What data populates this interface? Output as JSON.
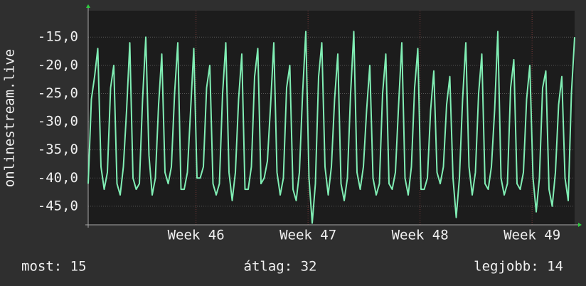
{
  "chart_data": {
    "type": "line",
    "y_label": "onlinestream.live",
    "ylim": [
      -48.3,
      -10.3
    ],
    "yticks": [
      {
        "value": -15,
        "label": "-15,0"
      },
      {
        "value": -20,
        "label": "-20,0"
      },
      {
        "value": -25,
        "label": "-25,0"
      },
      {
        "value": -30,
        "label": "-30,0"
      },
      {
        "value": -35,
        "label": "-35,0"
      },
      {
        "value": -40,
        "label": "-40,0"
      },
      {
        "value": -45,
        "label": "-45,0"
      }
    ],
    "xlim": [
      0,
      152
    ],
    "xticks": [
      {
        "value": 33.7,
        "label": "Week 46"
      },
      {
        "value": 68.7,
        "label": "Week 47"
      },
      {
        "value": 103.7,
        "label": "Week 48"
      },
      {
        "value": 138.7,
        "label": "Week 49"
      }
    ],
    "grid": true,
    "color": "#80eeb4",
    "values": [
      -41,
      -26,
      -22,
      -17,
      -38,
      -42,
      -39,
      -24,
      -20,
      -41,
      -43,
      -38,
      -28,
      -16,
      -40,
      -42,
      -41,
      -26,
      -15,
      -36,
      -43,
      -40,
      -27,
      -18,
      -39,
      -41,
      -38,
      -25,
      -16,
      -42,
      -42,
      -39,
      -28,
      -17,
      -40,
      -40,
      -38,
      -24,
      -20,
      -41,
      -43,
      -41,
      -25,
      -16,
      -39,
      -44,
      -39,
      -26,
      -18,
      -42,
      -42,
      -38,
      -22,
      -17,
      -41,
      -40,
      -37,
      -27,
      -16,
      -39,
      -43,
      -40,
      -24,
      -20,
      -42,
      -44,
      -39,
      -25,
      -14,
      -40,
      -48,
      -41,
      -22,
      -16,
      -38,
      -43,
      -38,
      -26,
      -18,
      -41,
      -44,
      -40,
      -25,
      -14,
      -39,
      -42,
      -38,
      -28,
      -20,
      -40,
      -43,
      -41,
      -25,
      -18,
      -41,
      -42,
      -39,
      -27,
      -16,
      -40,
      -43,
      -38,
      -24,
      -17,
      -42,
      -42,
      -40,
      -28,
      -21,
      -39,
      -41,
      -38,
      -27,
      -22,
      -40,
      -47,
      -40,
      -26,
      -16,
      -38,
      -43,
      -39,
      -25,
      -18,
      -41,
      -42,
      -38,
      -28,
      -14,
      -40,
      -43,
      -41,
      -24,
      -19,
      -41,
      -42,
      -39,
      -26,
      -20,
      -40,
      -46,
      -40,
      -24,
      -21,
      -42,
      -45,
      -39,
      -27,
      -22,
      -40,
      -44,
      -25,
      -15
    ],
    "footer": [
      "most: 15",
      "átlag: 32",
      "legjobb: 14"
    ]
  }
}
